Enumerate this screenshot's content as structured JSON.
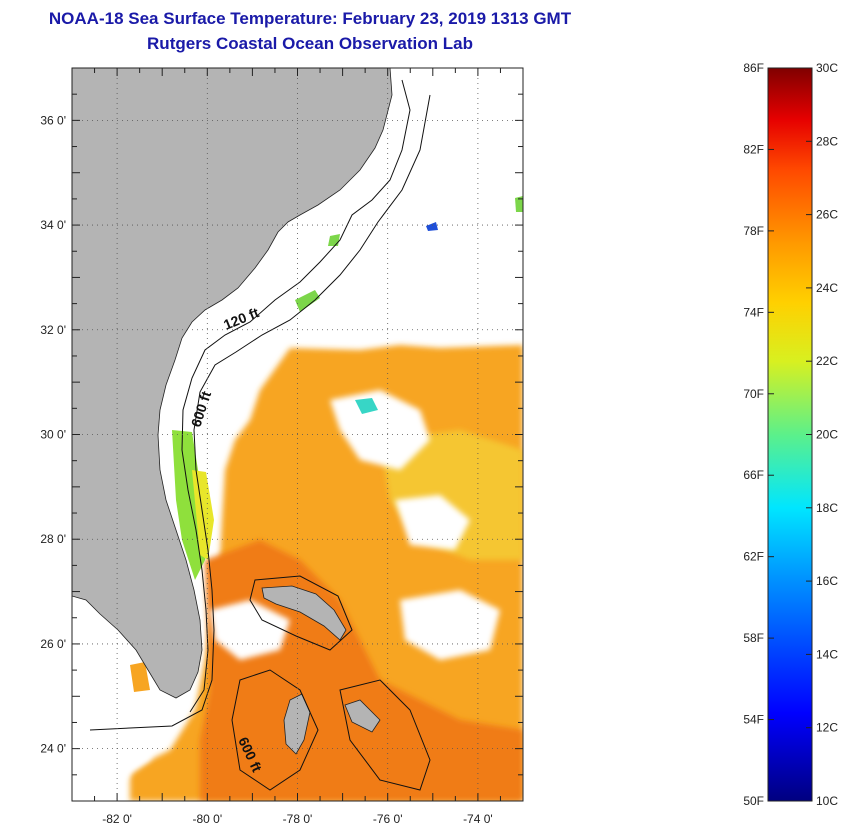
{
  "title": "NOAA-18 Sea Surface Temperature:  February 23, 2019 1313 GMT",
  "subtitle": "Rutgers Coastal Ocean Observation Lab",
  "map": {
    "lon_range": [
      -83,
      -73
    ],
    "lat_range": [
      23,
      37
    ],
    "x_ticks": [
      {
        "value": -82,
        "label": "-82 0'"
      },
      {
        "value": -80,
        "label": "-80 0'"
      },
      {
        "value": -78,
        "label": "-78 0'"
      },
      {
        "value": -76,
        "label": "-76 0'"
      },
      {
        "value": -74,
        "label": "-74 0'"
      }
    ],
    "y_ticks": [
      {
        "value": 36,
        "label": "36 0'"
      },
      {
        "value": 34,
        "label": "34 0'"
      },
      {
        "value": 32,
        "label": "32 0'"
      },
      {
        "value": 30,
        "label": "30 0'"
      },
      {
        "value": 28,
        "label": "28 0'"
      },
      {
        "value": 26,
        "label": "26 0'"
      },
      {
        "value": 24,
        "label": "24 0'"
      }
    ],
    "grid": "dotted",
    "land_color": "#b4b4b4",
    "contour_labels": [
      "120 ft",
      "600 ft",
      "600 ft"
    ]
  },
  "colorbar": {
    "f_labels": [
      "86F",
      "82F",
      "78F",
      "74F",
      "70F",
      "66F",
      "62F",
      "58F",
      "54F",
      "50F"
    ],
    "c_labels": [
      "30C",
      "28C",
      "26C",
      "24C",
      "22C",
      "20C",
      "18C",
      "16C",
      "14C",
      "12C",
      "10C"
    ],
    "range_c": [
      10,
      30
    ]
  }
}
